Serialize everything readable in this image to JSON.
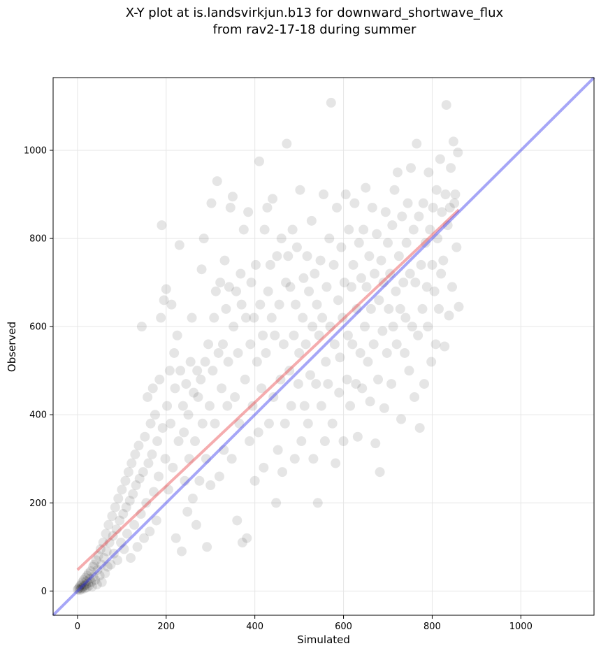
{
  "chart_data": {
    "type": "scatter",
    "title_line1": "X-Y plot at is.landsvirkjun.b13 for downward_shortwave_flux",
    "title_line2": "from rav2-17-18 during summer",
    "xlabel": "Simulated",
    "ylabel": "Observed",
    "xlim": [
      -55,
      1165
    ],
    "ylim": [
      -55,
      1165
    ],
    "xticks": [
      0,
      200,
      400,
      600,
      800,
      1000
    ],
    "yticks": [
      0,
      200,
      400,
      600,
      800,
      1000
    ],
    "grid": true,
    "colors": {
      "points": "#000000",
      "fit_line": "#e8474c",
      "identity_line": "#3a3aee",
      "grid": "#e6e6e6"
    },
    "lines": [
      {
        "role": "regression-fit",
        "x": [
          0,
          860
        ],
        "y": [
          48,
          865
        ]
      },
      {
        "role": "one-to-one",
        "x": [
          -55,
          1165
        ],
        "y": [
          -55,
          1165
        ]
      }
    ],
    "points_note_sample": true,
    "points": [
      [
        0,
        3
      ],
      [
        2,
        5
      ],
      [
        4,
        8
      ],
      [
        5,
        2
      ],
      [
        6,
        12
      ],
      [
        8,
        6
      ],
      [
        9,
        15
      ],
      [
        10,
        4
      ],
      [
        11,
        20
      ],
      [
        12,
        9
      ],
      [
        14,
        25
      ],
      [
        15,
        12
      ],
      [
        16,
        6
      ],
      [
        18,
        30
      ],
      [
        19,
        14
      ],
      [
        20,
        22
      ],
      [
        21,
        8
      ],
      [
        22,
        35
      ],
      [
        24,
        18
      ],
      [
        25,
        40
      ],
      [
        26,
        12
      ],
      [
        28,
        28
      ],
      [
        30,
        45
      ],
      [
        31,
        20
      ],
      [
        33,
        10
      ],
      [
        35,
        55
      ],
      [
        36,
        32
      ],
      [
        38,
        60
      ],
      [
        40,
        25
      ],
      [
        42,
        70
      ],
      [
        44,
        15
      ],
      [
        45,
        48
      ],
      [
        47,
        80
      ],
      [
        50,
        35
      ],
      [
        52,
        95
      ],
      [
        54,
        60
      ],
      [
        55,
        20
      ],
      [
        58,
        110
      ],
      [
        60,
        75
      ],
      [
        62,
        40
      ],
      [
        64,
        130
      ],
      [
        66,
        90
      ],
      [
        68,
        55
      ],
      [
        70,
        150
      ],
      [
        72,
        110
      ],
      [
        75,
        60
      ],
      [
        78,
        170
      ],
      [
        80,
        125
      ],
      [
        82,
        85
      ],
      [
        85,
        190
      ],
      [
        88,
        140
      ],
      [
        90,
        70
      ],
      [
        92,
        210
      ],
      [
        95,
        160
      ],
      [
        98,
        110
      ],
      [
        100,
        230
      ],
      [
        103,
        175
      ],
      [
        105,
        95
      ],
      [
        108,
        250
      ],
      [
        110,
        190
      ],
      [
        112,
        130
      ],
      [
        115,
        270
      ],
      [
        118,
        205
      ],
      [
        120,
        75
      ],
      [
        122,
        290
      ],
      [
        125,
        220
      ],
      [
        128,
        150
      ],
      [
        130,
        310
      ],
      [
        132,
        240
      ],
      [
        135,
        100
      ],
      [
        138,
        330
      ],
      [
        140,
        255
      ],
      [
        143,
        175
      ],
      [
        145,
        600
      ],
      [
        148,
        270
      ],
      [
        150,
        120
      ],
      [
        152,
        350
      ],
      [
        155,
        200
      ],
      [
        158,
        440
      ],
      [
        160,
        290
      ],
      [
        163,
        135
      ],
      [
        165,
        380
      ],
      [
        168,
        310
      ],
      [
        170,
        460
      ],
      [
        172,
        225
      ],
      [
        175,
        400
      ],
      [
        178,
        160
      ],
      [
        180,
        340
      ],
      [
        183,
        260
      ],
      [
        185,
        480
      ],
      [
        188,
        620
      ],
      [
        190,
        830
      ],
      [
        192,
        370
      ],
      [
        195,
        660
      ],
      [
        198,
        300
      ],
      [
        200,
        685
      ],
      [
        202,
        420
      ],
      [
        205,
        230
      ],
      [
        208,
        500
      ],
      [
        210,
        380
      ],
      [
        212,
        650
      ],
      [
        215,
        280
      ],
      [
        218,
        540
      ],
      [
        220,
        460
      ],
      [
        222,
        120
      ],
      [
        225,
        580
      ],
      [
        228,
        340
      ],
      [
        230,
        785
      ],
      [
        232,
        500
      ],
      [
        235,
        90
      ],
      [
        238,
        420
      ],
      [
        240,
        360
      ],
      [
        242,
        250
      ],
      [
        245,
        470
      ],
      [
        248,
        180
      ],
      [
        250,
        400
      ],
      [
        252,
        300
      ],
      [
        255,
        520
      ],
      [
        258,
        620
      ],
      [
        260,
        210
      ],
      [
        262,
        450
      ],
      [
        265,
        340
      ],
      [
        268,
        150
      ],
      [
        270,
        500
      ],
      [
        272,
        440
      ],
      [
        275,
        250
      ],
      [
        278,
        480
      ],
      [
        280,
        730
      ],
      [
        282,
        380
      ],
      [
        285,
        800
      ],
      [
        288,
        520
      ],
      [
        290,
        300
      ],
      [
        292,
        100
      ],
      [
        295,
        560
      ],
      [
        298,
        420
      ],
      [
        300,
        240
      ],
      [
        302,
        880
      ],
      [
        305,
        500
      ],
      [
        308,
        620
      ],
      [
        310,
        380
      ],
      [
        312,
        680
      ],
      [
        315,
        930
      ],
      [
        318,
        540
      ],
      [
        320,
        260
      ],
      [
        322,
        700
      ],
      [
        325,
        460
      ],
      [
        328,
        560
      ],
      [
        330,
        320
      ],
      [
        332,
        750
      ],
      [
        335,
        640
      ],
      [
        338,
        420
      ],
      [
        340,
        520
      ],
      [
        342,
        690
      ],
      [
        345,
        870
      ],
      [
        348,
        300
      ],
      [
        350,
        895
      ],
      [
        352,
        600
      ],
      [
        355,
        440
      ],
      [
        358,
        680
      ],
      [
        360,
        160
      ],
      [
        362,
        540
      ],
      [
        365,
        380
      ],
      [
        368,
        720
      ],
      [
        370,
        650
      ],
      [
        372,
        110
      ],
      [
        375,
        820
      ],
      [
        378,
        480
      ],
      [
        380,
        620
      ],
      [
        382,
        120
      ],
      [
        385,
        860
      ],
      [
        388,
        340
      ],
      [
        390,
        560
      ],
      [
        392,
        700
      ],
      [
        395,
        420
      ],
      [
        398,
        620
      ],
      [
        400,
        250
      ],
      [
        402,
        740
      ],
      [
        405,
        520
      ],
      [
        408,
        360
      ],
      [
        410,
        975
      ],
      [
        412,
        650
      ],
      [
        415,
        460
      ],
      [
        418,
        580
      ],
      [
        420,
        280
      ],
      [
        422,
        820
      ],
      [
        425,
        540
      ],
      [
        428,
        870
      ],
      [
        430,
        680
      ],
      [
        432,
        380
      ],
      [
        435,
        740
      ],
      [
        438,
        620
      ],
      [
        440,
        890
      ],
      [
        442,
        440
      ],
      [
        445,
        580
      ],
      [
        448,
        200
      ],
      [
        450,
        760
      ],
      [
        452,
        320
      ],
      [
        455,
        650
      ],
      [
        458,
        480
      ],
      [
        460,
        800
      ],
      [
        462,
        270
      ],
      [
        465,
        560
      ],
      [
        468,
        380
      ],
      [
        470,
        700
      ],
      [
        472,
        1015
      ],
      [
        475,
        760
      ],
      [
        478,
        500
      ],
      [
        480,
        690
      ],
      [
        482,
        420
      ],
      [
        485,
        820
      ],
      [
        488,
        580
      ],
      [
        490,
        300
      ],
      [
        492,
        650
      ],
      [
        495,
        780
      ],
      [
        498,
        470
      ],
      [
        500,
        540
      ],
      [
        502,
        910
      ],
      [
        505,
        340
      ],
      [
        508,
        620
      ],
      [
        510,
        710
      ],
      [
        512,
        420
      ],
      [
        515,
        560
      ],
      [
        518,
        760
      ],
      [
        520,
        380
      ],
      [
        522,
        680
      ],
      [
        525,
        490
      ],
      [
        528,
        840
      ],
      [
        530,
        600
      ],
      [
        532,
        300
      ],
      [
        535,
        720
      ],
      [
        538,
        470
      ],
      [
        540,
        650
      ],
      [
        542,
        200
      ],
      [
        545,
        580
      ],
      [
        548,
        750
      ],
      [
        550,
        420
      ],
      [
        552,
        620
      ],
      [
        555,
        900
      ],
      [
        558,
        340
      ],
      [
        560,
        520
      ],
      [
        562,
        690
      ],
      [
        565,
        470
      ],
      [
        568,
        800
      ],
      [
        570,
        600
      ],
      [
        572,
        1108
      ],
      [
        575,
        380
      ],
      [
        578,
        740
      ],
      [
        580,
        560
      ],
      [
        582,
        290
      ],
      [
        585,
        870
      ],
      [
        588,
        660
      ],
      [
        590,
        450
      ],
      [
        592,
        530
      ],
      [
        595,
        780
      ],
      [
        598,
        620
      ],
      [
        600,
        340
      ],
      [
        602,
        700
      ],
      [
        605,
        900
      ],
      [
        608,
        480
      ],
      [
        610,
        580
      ],
      [
        612,
        820
      ],
      [
        615,
        420
      ],
      [
        618,
        690
      ],
      [
        620,
        560
      ],
      [
        622,
        740
      ],
      [
        625,
        880
      ],
      [
        628,
        470
      ],
      [
        630,
        640
      ],
      [
        632,
        350
      ],
      [
        635,
        790
      ],
      [
        638,
        540
      ],
      [
        640,
        710
      ],
      [
        642,
        460
      ],
      [
        645,
        820
      ],
      [
        648,
        600
      ],
      [
        650,
        915
      ],
      [
        652,
        690
      ],
      [
        655,
        520
      ],
      [
        658,
        760
      ],
      [
        660,
        430
      ],
      [
        662,
        640
      ],
      [
        665,
        870
      ],
      [
        668,
        560
      ],
      [
        670,
        720
      ],
      [
        672,
        335
      ],
      [
        675,
        810
      ],
      [
        678,
        480
      ],
      [
        680,
        660
      ],
      [
        682,
        270
      ],
      [
        685,
        750
      ],
      [
        688,
        590
      ],
      [
        690,
        700
      ],
      [
        692,
        415
      ],
      [
        695,
        860
      ],
      [
        698,
        540
      ],
      [
        700,
        790
      ],
      [
        702,
        640
      ],
      [
        705,
        720
      ],
      [
        708,
        470
      ],
      [
        710,
        830
      ],
      [
        712,
        600
      ],
      [
        715,
        910
      ],
      [
        718,
        680
      ],
      [
        720,
        560
      ],
      [
        722,
        950
      ],
      [
        725,
        760
      ],
      [
        728,
        640
      ],
      [
        730,
        390
      ],
      [
        732,
        850
      ],
      [
        735,
        700
      ],
      [
        738,
        540
      ],
      [
        740,
        620
      ],
      [
        742,
        790
      ],
      [
        745,
        880
      ],
      [
        748,
        500
      ],
      [
        750,
        720
      ],
      [
        752,
        960
      ],
      [
        755,
        600
      ],
      [
        758,
        820
      ],
      [
        760,
        440
      ],
      [
        762,
        700
      ],
      [
        765,
        1015
      ],
      [
        768,
        580
      ],
      [
        770,
        850
      ],
      [
        772,
        370
      ],
      [
        775,
        740
      ],
      [
        778,
        640
      ],
      [
        780,
        880
      ],
      [
        782,
        470
      ],
      [
        785,
        790
      ],
      [
        788,
        690
      ],
      [
        790,
        600
      ],
      [
        792,
        950
      ],
      [
        795,
        820
      ],
      [
        798,
        520
      ],
      [
        800,
        740
      ],
      [
        802,
        870
      ],
      [
        805,
        680
      ],
      [
        808,
        560
      ],
      [
        810,
        910
      ],
      [
        812,
        800
      ],
      [
        815,
        640
      ],
      [
        818,
        980
      ],
      [
        820,
        720
      ],
      [
        822,
        860
      ],
      [
        825,
        750
      ],
      [
        828,
        555
      ],
      [
        830,
        900
      ],
      [
        832,
        1103
      ],
      [
        835,
        830
      ],
      [
        838,
        625
      ],
      [
        840,
        870
      ],
      [
        842,
        960
      ],
      [
        845,
        690
      ],
      [
        848,
        1020
      ],
      [
        850,
        880
      ],
      [
        852,
        900
      ],
      [
        855,
        780
      ],
      [
        858,
        995
      ],
      [
        860,
        645
      ]
    ]
  }
}
